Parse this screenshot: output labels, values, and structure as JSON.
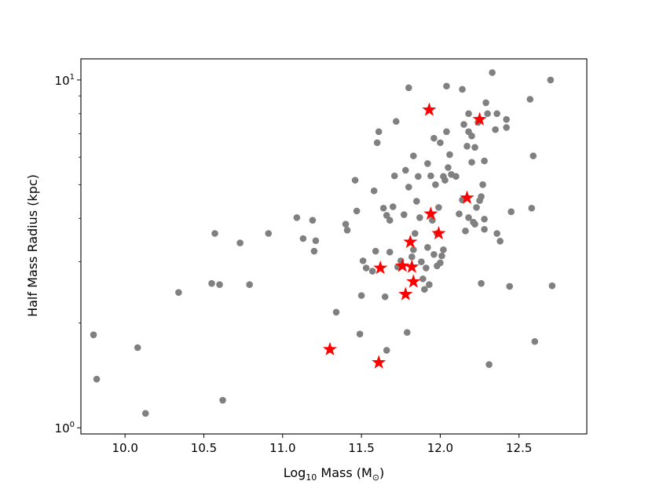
{
  "chart_data": {
    "type": "scatter",
    "title": "",
    "xlabel": {
      "prefix": "Log",
      "sub": "10",
      "middle": " Mass (M",
      "sub2": "⊙",
      "suffix": ")"
    },
    "ylabel": "Half Mass Radius (kpc)",
    "x_scale": "linear",
    "y_scale": "log",
    "xlim": [
      9.72,
      12.93
    ],
    "ylim": [
      0.96,
      11.5
    ],
    "x_ticks": [
      {
        "value": 10.0,
        "label": "10.0"
      },
      {
        "value": 10.5,
        "label": "10.5"
      },
      {
        "value": 11.0,
        "label": "11.0"
      },
      {
        "value": 11.5,
        "label": "11.5"
      },
      {
        "value": 12.0,
        "label": "12.0"
      },
      {
        "value": 12.5,
        "label": "12.5"
      }
    ],
    "y_ticks": [
      {
        "value": 1,
        "base": "10",
        "exp": "0"
      },
      {
        "value": 10,
        "base": "10",
        "exp": "1"
      }
    ],
    "y_minor_ticks": [
      2,
      3,
      4,
      5,
      6,
      7,
      8,
      9
    ],
    "grid": false,
    "legend": "none",
    "series": [
      {
        "marker": "circle",
        "color": "#808080",
        "points": [
          [
            9.8,
            1.85
          ],
          [
            9.82,
            1.38
          ],
          [
            10.08,
            1.7
          ],
          [
            10.13,
            1.1
          ],
          [
            10.34,
            2.45
          ],
          [
            10.55,
            2.6
          ],
          [
            10.57,
            3.62
          ],
          [
            10.6,
            2.58
          ],
          [
            10.62,
            1.2
          ],
          [
            10.73,
            3.4
          ],
          [
            10.79,
            2.58
          ],
          [
            10.91,
            3.62
          ],
          [
            11.09,
            4.02
          ],
          [
            11.13,
            3.5
          ],
          [
            11.19,
            3.95
          ],
          [
            11.2,
            3.22
          ],
          [
            11.21,
            3.45
          ],
          [
            11.34,
            2.15
          ],
          [
            11.4,
            3.85
          ],
          [
            11.41,
            3.7
          ],
          [
            11.46,
            5.15
          ],
          [
            11.47,
            4.2
          ],
          [
            11.49,
            1.86
          ],
          [
            11.5,
            2.4
          ],
          [
            11.51,
            3.02
          ],
          [
            11.53,
            2.88
          ],
          [
            11.57,
            2.82
          ],
          [
            11.58,
            4.8
          ],
          [
            11.59,
            3.22
          ],
          [
            11.6,
            6.6
          ],
          [
            11.61,
            7.1
          ],
          [
            11.64,
            4.28
          ],
          [
            11.65,
            2.38
          ],
          [
            11.66,
            4.08
          ],
          [
            11.66,
            1.67
          ],
          [
            11.68,
            3.95
          ],
          [
            11.68,
            3.2
          ],
          [
            11.7,
            4.32
          ],
          [
            11.71,
            5.3
          ],
          [
            11.72,
            7.6
          ],
          [
            11.73,
            2.9
          ],
          [
            11.75,
            3.02
          ],
          [
            11.77,
            4.1
          ],
          [
            11.78,
            5.5
          ],
          [
            11.79,
            1.88
          ],
          [
            11.8,
            9.5
          ],
          [
            11.8,
            4.92
          ],
          [
            11.82,
            3.1
          ],
          [
            11.83,
            3.25
          ],
          [
            11.83,
            6.05
          ],
          [
            11.84,
            3.62
          ],
          [
            11.85,
            4.48
          ],
          [
            11.86,
            5.28
          ],
          [
            11.87,
            4.02
          ],
          [
            11.88,
            3.0
          ],
          [
            11.89,
            2.68
          ],
          [
            11.9,
            2.5
          ],
          [
            11.91,
            2.88
          ],
          [
            11.92,
            3.3
          ],
          [
            11.92,
            5.75
          ],
          [
            11.93,
            2.58
          ],
          [
            11.94,
            5.3
          ],
          [
            11.95,
            3.95
          ],
          [
            11.96,
            3.15
          ],
          [
            11.96,
            6.8
          ],
          [
            11.97,
            5.0
          ],
          [
            11.98,
            2.92
          ],
          [
            11.98,
            3.62
          ],
          [
            11.99,
            4.3
          ],
          [
            12.0,
            2.98
          ],
          [
            12.0,
            6.6
          ],
          [
            12.01,
            3.12
          ],
          [
            12.02,
            3.25
          ],
          [
            12.02,
            5.28
          ],
          [
            12.03,
            5.15
          ],
          [
            12.04,
            7.1
          ],
          [
            12.04,
            9.6
          ],
          [
            12.05,
            5.6
          ],
          [
            12.06,
            6.1
          ],
          [
            12.07,
            5.35
          ],
          [
            12.1,
            5.28
          ],
          [
            12.12,
            4.12
          ],
          [
            12.14,
            4.52
          ],
          [
            12.14,
            9.4
          ],
          [
            12.15,
            7.45
          ],
          [
            12.16,
            3.68
          ],
          [
            12.17,
            6.45
          ],
          [
            12.18,
            4.02
          ],
          [
            12.18,
            7.1
          ],
          [
            12.18,
            8.0
          ],
          [
            12.2,
            5.8
          ],
          [
            12.2,
            6.9
          ],
          [
            12.21,
            3.9
          ],
          [
            12.22,
            3.85
          ],
          [
            12.22,
            6.4
          ],
          [
            12.23,
            4.3
          ],
          [
            12.24,
            7.55
          ],
          [
            12.25,
            4.5
          ],
          [
            12.26,
            4.62
          ],
          [
            12.26,
            2.6
          ],
          [
            12.27,
            5.0
          ],
          [
            12.28,
            3.72
          ],
          [
            12.28,
            3.98
          ],
          [
            12.28,
            5.85
          ],
          [
            12.29,
            8.6
          ],
          [
            12.3,
            8.0
          ],
          [
            12.31,
            1.52
          ],
          [
            12.33,
            10.5
          ],
          [
            12.35,
            7.2
          ],
          [
            12.36,
            3.62
          ],
          [
            12.36,
            8.0
          ],
          [
            12.38,
            3.44
          ],
          [
            12.42,
            7.3
          ],
          [
            12.42,
            7.7
          ],
          [
            12.44,
            2.55
          ],
          [
            12.45,
            4.18
          ],
          [
            12.57,
            8.8
          ],
          [
            12.58,
            4.28
          ],
          [
            12.59,
            6.05
          ],
          [
            12.6,
            1.77
          ],
          [
            12.7,
            10.0
          ],
          [
            12.71,
            2.56
          ]
        ]
      },
      {
        "marker": "star",
        "color": "#ff0000",
        "points": [
          [
            11.3,
            1.68
          ],
          [
            11.61,
            1.54
          ],
          [
            11.62,
            2.88
          ],
          [
            11.76,
            2.92
          ],
          [
            11.78,
            2.42
          ],
          [
            11.81,
            3.42
          ],
          [
            11.82,
            2.9
          ],
          [
            11.83,
            2.63
          ],
          [
            11.93,
            8.2
          ],
          [
            11.94,
            4.12
          ],
          [
            11.99,
            3.62
          ],
          [
            12.17,
            4.58
          ],
          [
            12.25,
            7.7
          ]
        ]
      }
    ]
  }
}
